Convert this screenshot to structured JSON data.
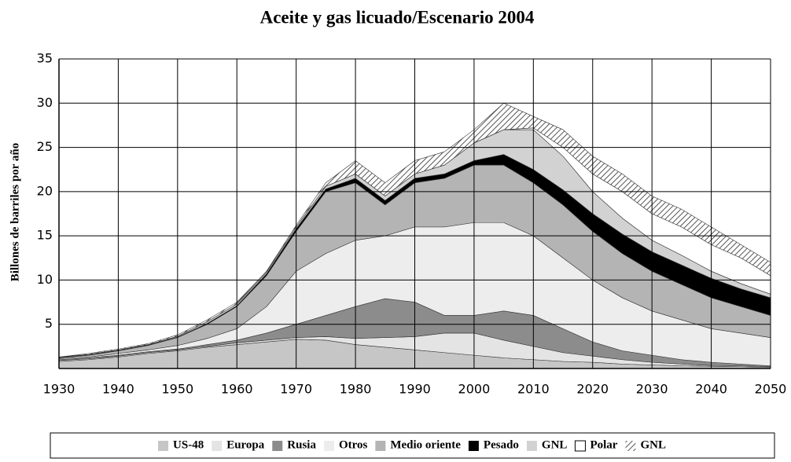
{
  "chart_data": {
    "type": "stacked-area",
    "title": "Aceite y gas licuado/Escenario 2004",
    "y_label": "Billones de barriles por año",
    "x": [
      1930,
      1935,
      1940,
      1945,
      1950,
      1955,
      1960,
      1965,
      1970,
      1975,
      1980,
      1985,
      1990,
      1995,
      2000,
      2005,
      2010,
      2015,
      2020,
      2025,
      2030,
      2035,
      2040,
      2045,
      2050
    ],
    "xlim": [
      1930,
      2050
    ],
    "xticks": [
      1930,
      1940,
      1950,
      1960,
      1970,
      1980,
      1990,
      2000,
      2010,
      2020,
      2030,
      2040,
      2050
    ],
    "ylim": [
      0,
      35
    ],
    "yticks": [
      5,
      10,
      15,
      20,
      25,
      30,
      35
    ],
    "grid": true,
    "legend": "bottom",
    "series": [
      {
        "name": "US-48",
        "color": "#c6c6c6",
        "values": [
          0.8,
          1.0,
          1.3,
          1.7,
          2.0,
          2.4,
          2.7,
          3.0,
          3.3,
          3.2,
          2.7,
          2.4,
          2.1,
          1.8,
          1.5,
          1.2,
          1.0,
          0.8,
          0.7,
          0.5,
          0.4,
          0.3,
          0.25,
          0.2,
          0.15
        ]
      },
      {
        "name": "Europa",
        "color": "#e4e4e4",
        "values": [
          0.1,
          0.1,
          0.1,
          0.1,
          0.1,
          0.1,
          0.2,
          0.2,
          0.2,
          0.4,
          0.7,
          1.1,
          1.5,
          2.2,
          2.5,
          2.0,
          1.5,
          1.0,
          0.7,
          0.5,
          0.3,
          0.2,
          0.1,
          0.1,
          0.05
        ]
      },
      {
        "name": "Rusia",
        "color": "#8c8c8c",
        "values": [
          0.1,
          0.1,
          0.1,
          0.1,
          0.1,
          0.2,
          0.3,
          0.8,
          1.5,
          2.4,
          3.6,
          4.4,
          3.9,
          2.0,
          2.0,
          3.3,
          3.5,
          2.7,
          1.6,
          1.0,
          0.8,
          0.5,
          0.35,
          0.2,
          0.1
        ]
      },
      {
        "name": "Otros",
        "color": "#ededed",
        "values": [
          0.1,
          0.1,
          0.2,
          0.2,
          0.4,
          0.7,
          1.3,
          3.0,
          6.0,
          7.0,
          7.5,
          7.1,
          8.5,
          10,
          10.5,
          10,
          9,
          8,
          7,
          6,
          5,
          4.5,
          3.8,
          3.5,
          3.2
        ]
      },
      {
        "name": "Medio oriente",
        "color": "#b4b4b4",
        "values": [
          0.1,
          0.2,
          0.3,
          0.5,
          0.9,
          1.6,
          2.5,
          3.5,
          4.5,
          7,
          6.5,
          3.5,
          5,
          5.5,
          6.5,
          6.5,
          6,
          6,
          5.5,
          5,
          4.5,
          4,
          3.5,
          3,
          2.5
        ]
      },
      {
        "name": "Pesado",
        "color": "#000000",
        "values": [
          0.05,
          0.05,
          0.05,
          0.05,
          0.05,
          0.1,
          0.1,
          0.2,
          0.3,
          0.3,
          0.5,
          0.5,
          0.5,
          0.5,
          0.5,
          1.2,
          1.5,
          1.7,
          2,
          2.2,
          2.2,
          2.2,
          2.2,
          2,
          2
        ]
      },
      {
        "name": "GNL",
        "color": "#d2d2d2",
        "values": [
          0.05,
          0.05,
          0.05,
          0.05,
          0.1,
          0.2,
          0.2,
          0.2,
          0.2,
          0.3,
          0.5,
          0.5,
          0.5,
          1,
          2,
          2.8,
          4.5,
          3.8,
          2.5,
          1.8,
          1.3,
          1.1,
          0.8,
          0.6,
          0.4
        ]
      },
      {
        "name": "Polar",
        "color": "#ffffff",
        "values": [
          0,
          0,
          0,
          0,
          0,
          0,
          0,
          0,
          0,
          0,
          0,
          0,
          0,
          0,
          0,
          0,
          0.2,
          1,
          2,
          3,
          3,
          3.2,
          3,
          2.9,
          2.1
        ]
      },
      {
        "name": "GNL",
        "color": "#777777",
        "hatch": true,
        "values": [
          0,
          0.1,
          0.1,
          0.1,
          0.15,
          0.2,
          0.2,
          0.1,
          0.2,
          0.4,
          1.5,
          1.5,
          1.5,
          1.5,
          1.5,
          3,
          1.3,
          2,
          2,
          2,
          2,
          2,
          2,
          1.5,
          1.5
        ]
      }
    ]
  }
}
